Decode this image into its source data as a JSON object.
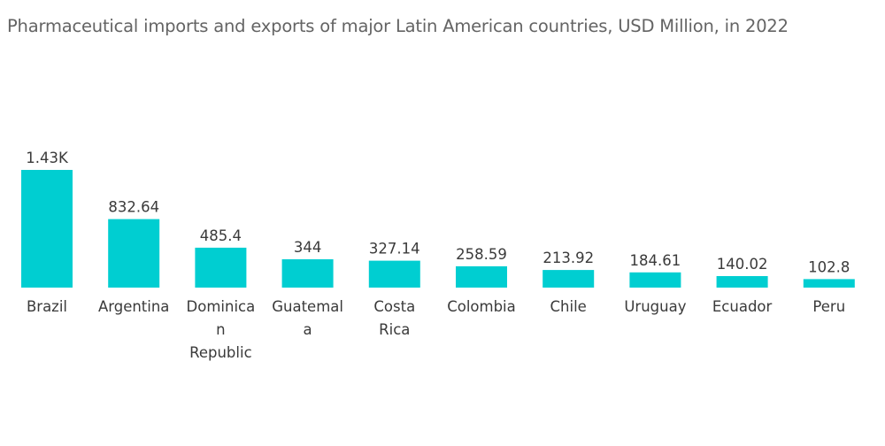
{
  "chart_data": {
    "type": "bar",
    "title": "Pharmaceutical imports and exports of major Latin American countries, USD Million, in 2022",
    "xlabel": "",
    "ylabel": "",
    "categories": [
      "Brazil",
      "Argentina",
      "Dominican Republic",
      "Guatemala",
      "Costa Rica",
      "Colombia",
      "Chile",
      "Uruguay",
      "Ecuador",
      "Peru"
    ],
    "category_label_lines": [
      [
        "Brazil"
      ],
      [
        "Argentina"
      ],
      [
        "Dominica",
        "n",
        "Republic"
      ],
      [
        "Guatemal",
        "a"
      ],
      [
        "Costa",
        "Rica"
      ],
      [
        "Colombia"
      ],
      [
        "Chile"
      ],
      [
        "Uruguay"
      ],
      [
        "Ecuador"
      ],
      [
        "Peru"
      ]
    ],
    "values": [
      1430,
      832.64,
      485.4,
      344,
      327.14,
      258.59,
      213.92,
      184.61,
      140.02,
      102.8
    ],
    "value_labels": [
      "1.43K",
      "832.64",
      "485.4",
      "344",
      "327.14",
      "258.59",
      "213.92",
      "184.61",
      "140.02",
      "102.8"
    ],
    "ylim": [
      0,
      1430
    ],
    "grid": false,
    "legend": "none",
    "bar_color": "#00CED1"
  }
}
